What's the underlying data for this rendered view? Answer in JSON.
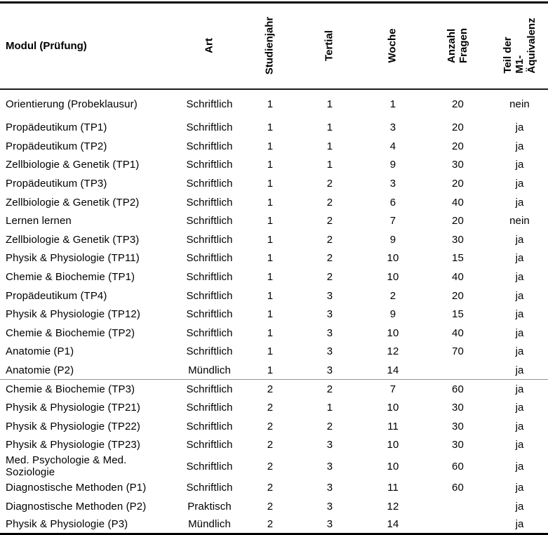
{
  "table": {
    "columns": [
      {
        "key": "modul",
        "label": "Modul (Prüfung)",
        "rotated": false
      },
      {
        "key": "art",
        "label": "Art",
        "rotated": true
      },
      {
        "key": "studienjahr",
        "label": "Studienjahr",
        "rotated": true
      },
      {
        "key": "tertial",
        "label": "Tertial",
        "rotated": true
      },
      {
        "key": "woche",
        "label": "Woche",
        "rotated": true
      },
      {
        "key": "anzahl_fragen",
        "label": "Anzahl Fragen",
        "rotated": true
      },
      {
        "key": "teil_m1",
        "label": "Teil der M1-\nÄquivalenz",
        "rotated": true
      }
    ],
    "rows": [
      {
        "modul": "Orientierung (Probeklausur)",
        "art": "Schriftlich",
        "studienjahr": "1",
        "tertial": "1",
        "woche": "1",
        "anzahl_fragen": "20",
        "teil_m1": "nein"
      },
      {
        "modul": "Propädeutikum (TP1)",
        "art": "Schriftlich",
        "studienjahr": "1",
        "tertial": "1",
        "woche": "3",
        "anzahl_fragen": "20",
        "teil_m1": "ja"
      },
      {
        "modul": "Propädeutikum (TP2)",
        "art": "Schriftlich",
        "studienjahr": "1",
        "tertial": "1",
        "woche": "4",
        "anzahl_fragen": "20",
        "teil_m1": "ja"
      },
      {
        "modul": "Zellbiologie & Genetik (TP1)",
        "art": "Schriftlich",
        "studienjahr": "1",
        "tertial": "1",
        "woche": "9",
        "anzahl_fragen": "30",
        "teil_m1": "ja"
      },
      {
        "modul": "Propädeutikum (TP3)",
        "art": "Schriftlich",
        "studienjahr": "1",
        "tertial": "2",
        "woche": "3",
        "anzahl_fragen": "20",
        "teil_m1": "ja"
      },
      {
        "modul": "Zellbiologie & Genetik (TP2)",
        "art": "Schriftlich",
        "studienjahr": "1",
        "tertial": "2",
        "woche": "6",
        "anzahl_fragen": "40",
        "teil_m1": "ja"
      },
      {
        "modul": "Lernen lernen",
        "art": "Schriftlich",
        "studienjahr": "1",
        "tertial": "2",
        "woche": "7",
        "anzahl_fragen": "20",
        "teil_m1": "nein"
      },
      {
        "modul": "Zellbiologie & Genetik (TP3)",
        "art": "Schriftlich",
        "studienjahr": "1",
        "tertial": "2",
        "woche": "9",
        "anzahl_fragen": "30",
        "teil_m1": "ja"
      },
      {
        "modul": "Physik & Physiologie (TP11)",
        "art": "Schriftlich",
        "studienjahr": "1",
        "tertial": "2",
        "woche": "10",
        "anzahl_fragen": "15",
        "teil_m1": "ja"
      },
      {
        "modul": "Chemie & Biochemie (TP1)",
        "art": "Schriftlich",
        "studienjahr": "1",
        "tertial": "2",
        "woche": "10",
        "anzahl_fragen": "40",
        "teil_m1": "ja"
      },
      {
        "modul": "Propädeutikum (TP4)",
        "art": "Schriftlich",
        "studienjahr": "1",
        "tertial": "3",
        "woche": "2",
        "anzahl_fragen": "20",
        "teil_m1": "ja"
      },
      {
        "modul": "Physik & Physiologie (TP12)",
        "art": "Schriftlich",
        "studienjahr": "1",
        "tertial": "3",
        "woche": "9",
        "anzahl_fragen": "15",
        "teil_m1": "ja"
      },
      {
        "modul": "Chemie & Biochemie (TP2)",
        "art": "Schriftlich",
        "studienjahr": "1",
        "tertial": "3",
        "woche": "10",
        "anzahl_fragen": "40",
        "teil_m1": "ja"
      },
      {
        "modul": "Anatomie (P1)",
        "art": "Schriftlich",
        "studienjahr": "1",
        "tertial": "3",
        "woche": "12",
        "anzahl_fragen": "70",
        "teil_m1": "ja"
      },
      {
        "modul": "Anatomie (P2)",
        "art": "Mündlich",
        "studienjahr": "1",
        "tertial": "3",
        "woche": "14",
        "anzahl_fragen": "",
        "teil_m1": "ja",
        "divider_below": true
      },
      {
        "modul": "Chemie & Biochemie (TP3)",
        "art": "Schriftlich",
        "studienjahr": "2",
        "tertial": "2",
        "woche": "7",
        "anzahl_fragen": "60",
        "teil_m1": "ja"
      },
      {
        "modul": "Physik & Physiologie (TP21)",
        "art": "Schriftlich",
        "studienjahr": "2",
        "tertial": "1",
        "woche": "10",
        "anzahl_fragen": "30",
        "teil_m1": "ja"
      },
      {
        "modul": "Physik & Physiologie (TP22)",
        "art": "Schriftlich",
        "studienjahr": "2",
        "tertial": "2",
        "woche": "11",
        "anzahl_fragen": "30",
        "teil_m1": "ja"
      },
      {
        "modul": "Physik & Physiologie (TP23)",
        "art": "Schriftlich",
        "studienjahr": "2",
        "tertial": "3",
        "woche": "10",
        "anzahl_fragen": "30",
        "teil_m1": "ja"
      },
      {
        "modul": "Med. Psychologie & Med. Soziologie",
        "art": "Schriftlich",
        "studienjahr": "2",
        "tertial": "3",
        "woche": "10",
        "anzahl_fragen": "60",
        "teil_m1": "ja"
      },
      {
        "modul": "Diagnostische Methoden (P1)",
        "art": "Schriftlich",
        "studienjahr": "2",
        "tertial": "3",
        "woche": "11",
        "anzahl_fragen": "60",
        "teil_m1": "ja"
      },
      {
        "modul": "Diagnostische Methoden (P2)",
        "art": "Praktisch",
        "studienjahr": "2",
        "tertial": "3",
        "woche": "12",
        "anzahl_fragen": "",
        "teil_m1": "ja"
      },
      {
        "modul": "Physik & Physiologie (P3)",
        "art": "Mündlich",
        "studienjahr": "2",
        "tertial": "3",
        "woche": "14",
        "anzahl_fragen": "",
        "teil_m1": "ja"
      }
    ],
    "colors": {
      "text": "#000000",
      "rule_heavy": "#000000",
      "rule_header": "#1c1c1c",
      "rule_section_divider": "#949494"
    }
  }
}
